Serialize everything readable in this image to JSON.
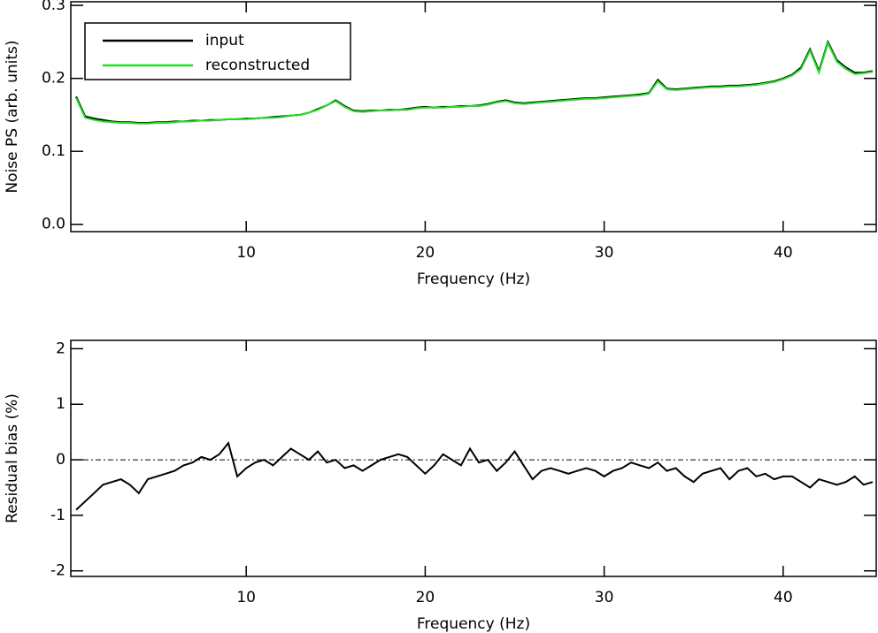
{
  "chart_data": [
    {
      "type": "line",
      "ylabel": "Noise PS (arb. units)",
      "xlabel": "Frequency (Hz)",
      "xlim": [
        0.2,
        45.2
      ],
      "xticks": [
        10,
        20,
        30,
        40
      ],
      "ylim": [
        -0.01,
        0.305
      ],
      "yticks": [
        {
          "value": 0,
          "label": "0.0"
        },
        0.1,
        0.2,
        0.3
      ],
      "legend": "upper left",
      "x": [
        0.5,
        1,
        1.5,
        2,
        2.5,
        3,
        3.5,
        4,
        4.5,
        5,
        5.5,
        6,
        6.5,
        7,
        7.5,
        8,
        8.5,
        9,
        9.5,
        10,
        10.5,
        11,
        11.5,
        12,
        12.5,
        13,
        13.5,
        14,
        14.5,
        15,
        15.5,
        16,
        16.5,
        17,
        17.5,
        18,
        18.5,
        19,
        19.5,
        20,
        20.5,
        21,
        21.5,
        22,
        22.5,
        23,
        23.5,
        24,
        24.5,
        25,
        25.5,
        26,
        26.5,
        27,
        27.5,
        28,
        28.5,
        29,
        29.5,
        30,
        30.5,
        31,
        31.5,
        32,
        32.5,
        33,
        33.5,
        34,
        34.5,
        35,
        35.5,
        36,
        36.5,
        37,
        37.5,
        38,
        38.5,
        39,
        39.5,
        40,
        40.5,
        41,
        41.5,
        42,
        42.5,
        43,
        43.5,
        44,
        44.5,
        45
      ],
      "series": [
        {
          "name": "input",
          "color": "#000000",
          "values": [
            0.175,
            0.148,
            0.145,
            0.143,
            0.141,
            0.14,
            0.14,
            0.139,
            0.139,
            0.14,
            0.14,
            0.141,
            0.141,
            0.142,
            0.142,
            0.143,
            0.143,
            0.144,
            0.144,
            0.145,
            0.145,
            0.146,
            0.147,
            0.148,
            0.149,
            0.15,
            0.153,
            0.158,
            0.163,
            0.17,
            0.162,
            0.156,
            0.155,
            0.156,
            0.156,
            0.157,
            0.157,
            0.158,
            0.16,
            0.161,
            0.16,
            0.161,
            0.161,
            0.162,
            0.162,
            0.163,
            0.165,
            0.168,
            0.17,
            0.167,
            0.166,
            0.167,
            0.168,
            0.169,
            0.17,
            0.171,
            0.172,
            0.173,
            0.173,
            0.174,
            0.175,
            0.176,
            0.177,
            0.178,
            0.18,
            0.198,
            0.186,
            0.185,
            0.186,
            0.187,
            0.188,
            0.189,
            0.189,
            0.19,
            0.19,
            0.191,
            0.192,
            0.194,
            0.196,
            0.2,
            0.205,
            0.215,
            0.24,
            0.21,
            0.25,
            0.225,
            0.215,
            0.208,
            0.208,
            0.21
          ]
        },
        {
          "name": "reconstructed",
          "color": "#22e022",
          "values": [
            0.173,
            0.146,
            0.143,
            0.141,
            0.14,
            0.139,
            0.139,
            0.138,
            0.138,
            0.139,
            0.139,
            0.14,
            0.141,
            0.141,
            0.142,
            0.142,
            0.143,
            0.144,
            0.144,
            0.144,
            0.145,
            0.146,
            0.146,
            0.147,
            0.149,
            0.15,
            0.153,
            0.157,
            0.163,
            0.169,
            0.161,
            0.155,
            0.154,
            0.155,
            0.156,
            0.156,
            0.157,
            0.157,
            0.159,
            0.16,
            0.16,
            0.16,
            0.161,
            0.161,
            0.162,
            0.162,
            0.164,
            0.167,
            0.169,
            0.166,
            0.165,
            0.166,
            0.167,
            0.168,
            0.169,
            0.17,
            0.171,
            0.172,
            0.172,
            0.173,
            0.174,
            0.175,
            0.176,
            0.177,
            0.179,
            0.196,
            0.185,
            0.184,
            0.185,
            0.186,
            0.187,
            0.188,
            0.188,
            0.189,
            0.189,
            0.19,
            0.191,
            0.193,
            0.195,
            0.199,
            0.204,
            0.213,
            0.238,
            0.208,
            0.248,
            0.223,
            0.213,
            0.206,
            0.207,
            0.209
          ]
        }
      ]
    },
    {
      "type": "line",
      "ylabel": "Residual bias (%)",
      "xlabel": "Frequency (Hz)",
      "xlim": [
        0.2,
        45.2
      ],
      "xticks": [
        10,
        20,
        30,
        40
      ],
      "ylim": [
        -2.1,
        2.15
      ],
      "yticks": [
        -2,
        -1,
        0,
        1,
        2
      ],
      "hline": 0,
      "x": [
        0.5,
        1,
        1.5,
        2,
        2.5,
        3,
        3.5,
        4,
        4.5,
        5,
        5.5,
        6,
        6.5,
        7,
        7.5,
        8,
        8.5,
        9,
        9.5,
        10,
        10.5,
        11,
        11.5,
        12,
        12.5,
        13,
        13.5,
        14,
        14.5,
        15,
        15.5,
        16,
        16.5,
        17,
        17.5,
        18,
        18.5,
        19,
        19.5,
        20,
        20.5,
        21,
        21.5,
        22,
        22.5,
        23,
        23.5,
        24,
        24.5,
        25,
        25.5,
        26,
        26.5,
        27,
        27.5,
        28,
        28.5,
        29,
        29.5,
        30,
        30.5,
        31,
        31.5,
        32,
        32.5,
        33,
        33.5,
        34,
        34.5,
        35,
        35.5,
        36,
        36.5,
        37,
        37.5,
        38,
        38.5,
        39,
        39.5,
        40,
        40.5,
        41,
        41.5,
        42,
        42.5,
        43,
        43.5,
        44,
        44.5,
        45
      ],
      "color": "#000000",
      "values": [
        -0.9,
        -0.75,
        -0.6,
        -0.45,
        -0.4,
        -0.35,
        -0.45,
        -0.6,
        -0.35,
        -0.3,
        -0.25,
        -0.2,
        -0.1,
        -0.05,
        0.05,
        0.0,
        0.1,
        0.3,
        -0.3,
        -0.15,
        -0.05,
        0.0,
        -0.1,
        0.05,
        0.2,
        0.1,
        0.0,
        0.15,
        -0.05,
        0.0,
        -0.15,
        -0.1,
        -0.2,
        -0.1,
        0.0,
        0.05,
        0.1,
        0.05,
        -0.1,
        -0.25,
        -0.1,
        0.1,
        0.0,
        -0.1,
        0.2,
        -0.05,
        0.0,
        -0.2,
        -0.05,
        0.15,
        -0.1,
        -0.35,
        -0.2,
        -0.15,
        -0.2,
        -0.25,
        -0.2,
        -0.15,
        -0.2,
        -0.3,
        -0.2,
        -0.15,
        -0.05,
        -0.1,
        -0.15,
        -0.05,
        -0.2,
        -0.15,
        -0.3,
        -0.4,
        -0.25,
        -0.2,
        -0.15,
        -0.35,
        -0.2,
        -0.15,
        -0.3,
        -0.25,
        -0.35,
        -0.3,
        -0.3,
        -0.4,
        -0.5,
        -0.35,
        -0.4,
        -0.45,
        -0.4,
        -0.3,
        -0.45,
        -0.4
      ]
    }
  ]
}
